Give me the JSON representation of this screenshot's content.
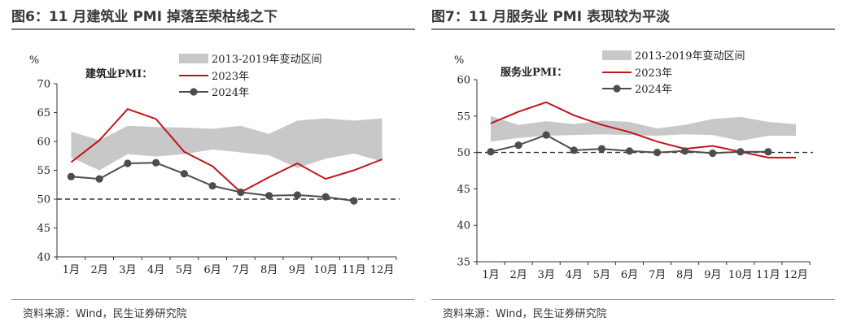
{
  "chart_data": [
    {
      "type": "line",
      "title": "图6：11 月建筑业 PMI 掉落至荣枯线之下",
      "series_label": "建筑业PMI：",
      "unit_label": "%",
      "source": "资料来源：Wind，民生证券研究院",
      "categories": [
        "1月",
        "2月",
        "3月",
        "4月",
        "5月",
        "6月",
        "7月",
        "8月",
        "9月",
        "10月",
        "11月",
        "12月"
      ],
      "ylim": [
        40,
        70
      ],
      "yticks": [
        40,
        45,
        50,
        55,
        60,
        65,
        70
      ],
      "reference_line": 50,
      "band": {
        "name": "2013-2019年变动区间",
        "color": "#c8c8c8",
        "low": [
          57.2,
          55.0,
          57.8,
          57.4,
          57.8,
          58.6,
          58.1,
          57.6,
          55.4,
          57.0,
          57.9,
          56.5
        ],
        "high": [
          61.7,
          60.2,
          62.7,
          62.5,
          62.4,
          62.2,
          62.7,
          61.3,
          63.6,
          64.0,
          63.6,
          64.0
        ]
      },
      "series": [
        {
          "name": "2023年",
          "color": "#c0161b",
          "values": [
            56.4,
            60.2,
            65.6,
            63.9,
            58.2,
            55.7,
            51.2,
            53.8,
            56.2,
            53.5,
            55.0,
            56.9
          ]
        },
        {
          "name": "2024年",
          "color": "#4d4d4d",
          "values": [
            53.9,
            53.5,
            56.2,
            56.3,
            54.4,
            52.3,
            51.2,
            50.6,
            50.7,
            50.4,
            49.7,
            null
          ]
        }
      ]
    },
    {
      "type": "line",
      "title": "图7：11 月服务业 PMI 表现较为平淡",
      "series_label": "服务业PMI：",
      "unit_label": "%",
      "source": "资料来源：Wind，民生证券研究院",
      "categories": [
        "1月",
        "2月",
        "3月",
        "4月",
        "5月",
        "6月",
        "7月",
        "8月",
        "9月",
        "10月",
        "11月",
        "12月"
      ],
      "ylim": [
        35,
        60
      ],
      "yticks": [
        35,
        40,
        45,
        50,
        55,
        60
      ],
      "reference_line": 50,
      "band": {
        "name": "2013-2019年变动区间",
        "color": "#c8c8c8",
        "low": [
          51.5,
          52.0,
          52.3,
          52.4,
          52.5,
          52.4,
          52.3,
          52.5,
          52.4,
          51.6,
          52.3,
          52.3
        ],
        "high": [
          55.0,
          53.8,
          54.3,
          53.9,
          54.4,
          54.2,
          53.3,
          53.8,
          54.6,
          54.9,
          54.2,
          53.9
        ]
      },
      "series": [
        {
          "name": "2023年",
          "color": "#c0161b",
          "values": [
            54.0,
            55.6,
            56.9,
            55.1,
            53.8,
            52.8,
            51.5,
            50.5,
            50.9,
            50.1,
            49.3,
            49.3
          ]
        },
        {
          "name": "2024年",
          "color": "#4d4d4d",
          "values": [
            50.1,
            51.0,
            52.4,
            50.3,
            50.5,
            50.2,
            50.0,
            50.2,
            49.9,
            50.1,
            50.1,
            null
          ]
        }
      ]
    }
  ]
}
